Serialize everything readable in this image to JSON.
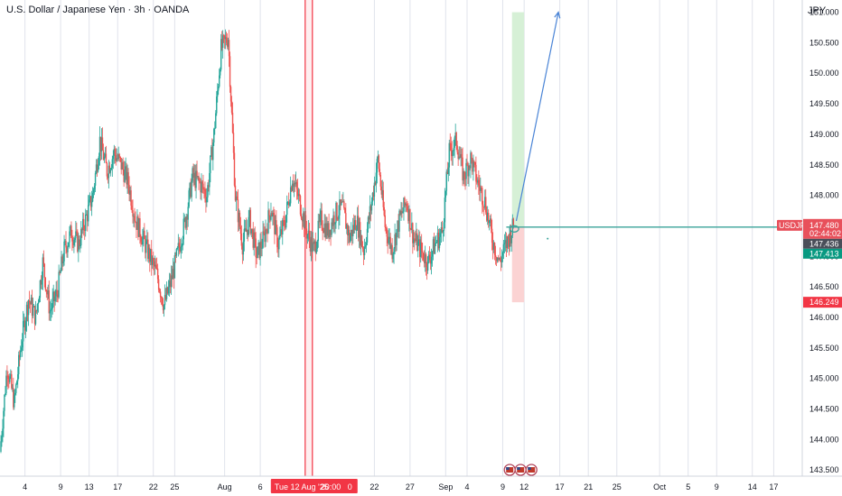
{
  "header": {
    "title": "U.S. Dollar / Japanese Yen · 3h · OANDA",
    "currency_button": "JPY"
  },
  "colors": {
    "up": "#26a69a",
    "down": "#ef5350",
    "grid": "#e0e3eb",
    "highlight": "#f23645",
    "projection": "#4a84d6",
    "target_zone": "#d6f0d6",
    "stop_zone": "#fbd3d3",
    "hline": "#3aa39a"
  },
  "chart_data": {
    "type": "candlestick",
    "symbol": "USDJPY",
    "timeframe": "3h",
    "source": "OANDA",
    "price_range": [
      143.4,
      151.2
    ],
    "y_ticks": [
      151.0,
      150.5,
      150.0,
      149.5,
      149.0,
      148.5,
      148.0,
      147.5,
      147.0,
      146.5,
      146.0,
      145.5,
      145.0,
      144.5,
      144.0,
      143.5
    ],
    "y_tick_labels": [
      "151.000",
      "150.500",
      "150.000",
      "149.500",
      "149.000",
      "148.500",
      "148.000",
      "147.500",
      "147.000",
      "146.500",
      "146.000",
      "145.500",
      "145.000",
      "144.500",
      "144.000",
      "143.500"
    ],
    "x_ticks": [
      {
        "label": "4",
        "day": 4
      },
      {
        "label": "9",
        "day": 9
      },
      {
        "label": "13",
        "day": 13
      },
      {
        "label": "17",
        "day": 17
      },
      {
        "label": "22",
        "day": 22
      },
      {
        "label": "25",
        "day": 25
      },
      {
        "label": "Aug",
        "day": 32
      },
      {
        "label": "6",
        "day": 37
      },
      {
        "label": "22",
        "day": 53
      },
      {
        "label": "27",
        "day": 58
      },
      {
        "label": "Sep",
        "day": 63
      },
      {
        "label": "4",
        "day": 66
      },
      {
        "label": "9",
        "day": 71
      },
      {
        "label": "12",
        "day": 74
      },
      {
        "label": "17",
        "day": 79
      },
      {
        "label": "21",
        "day": 83
      },
      {
        "label": "25",
        "day": 87
      },
      {
        "label": "Oct",
        "day": 93
      },
      {
        "label": "5",
        "day": 97
      },
      {
        "label": "9",
        "day": 101
      },
      {
        "label": "14",
        "day": 106
      },
      {
        "label": "17",
        "day": 109
      }
    ],
    "day_range": [
      0.5,
      113
    ],
    "highlight_day": 43.8,
    "highlight_label": "Tue 12 Aug '25",
    "highlight_time": "20:00",
    "highlight_extra": "0",
    "events_day": 73.5,
    "path": [
      [
        0.5,
        143.8
      ],
      [
        1.5,
        145.2
      ],
      [
        2.5,
        144.6
      ],
      [
        3.5,
        145.6
      ],
      [
        4.5,
        146.3
      ],
      [
        5.5,
        146.0
      ],
      [
        6.5,
        146.9
      ],
      [
        7.5,
        146.1
      ],
      [
        8.5,
        146.4
      ],
      [
        9.5,
        147.1
      ],
      [
        10.5,
        147.4
      ],
      [
        11.5,
        147.2
      ],
      [
        12.5,
        147.6
      ],
      [
        13.5,
        148.0
      ],
      [
        14.5,
        148.9
      ],
      [
        15.5,
        148.4
      ],
      [
        16.5,
        148.7
      ],
      [
        17.5,
        148.5
      ],
      [
        18.5,
        148.2
      ],
      [
        19.5,
        147.6
      ],
      [
        20.5,
        147.3
      ],
      [
        21.5,
        147.0
      ],
      [
        22.5,
        146.7
      ],
      [
        23.5,
        146.2
      ],
      [
        24.5,
        146.6
      ],
      [
        25.5,
        147.1
      ],
      [
        26.5,
        147.6
      ],
      [
        27.5,
        148.3
      ],
      [
        28.5,
        148.2
      ],
      [
        29.5,
        148.0
      ],
      [
        30.5,
        149.0
      ],
      [
        31.5,
        150.4
      ],
      [
        32.5,
        150.6
      ],
      [
        33.5,
        148.0
      ],
      [
        34.5,
        147.2
      ],
      [
        35.5,
        147.6
      ],
      [
        36.5,
        147.0
      ],
      [
        37.5,
        147.3
      ],
      [
        38.5,
        147.8
      ],
      [
        39.5,
        147.2
      ],
      [
        40.5,
        147.6
      ],
      [
        41.5,
        148.3
      ],
      [
        42.5,
        147.9
      ],
      [
        43.5,
        147.4
      ],
      [
        44.5,
        147.1
      ],
      [
        45.5,
        147.6
      ],
      [
        46.5,
        147.4
      ],
      [
        47.5,
        147.7
      ],
      [
        48.5,
        147.8
      ],
      [
        49.5,
        147.3
      ],
      [
        50.5,
        147.6
      ],
      [
        51.5,
        147.1
      ],
      [
        52.5,
        147.8
      ],
      [
        53.5,
        148.6
      ],
      [
        54.5,
        147.5
      ],
      [
        55.5,
        147.1
      ],
      [
        56.5,
        147.6
      ],
      [
        57.5,
        147.9
      ],
      [
        58.5,
        147.3
      ],
      [
        59.5,
        147.1
      ],
      [
        60.5,
        146.9
      ],
      [
        61.5,
        147.2
      ],
      [
        62.5,
        147.4
      ],
      [
        63.5,
        148.7
      ],
      [
        64.5,
        148.9
      ],
      [
        65.5,
        148.3
      ],
      [
        66.5,
        148.6
      ],
      [
        67.5,
        148.2
      ],
      [
        68.5,
        147.9
      ],
      [
        69.5,
        147.3
      ],
      [
        70.5,
        146.9
      ],
      [
        71.5,
        147.2
      ],
      [
        72.5,
        147.5
      ]
    ],
    "last_price": 147.48,
    "last_price_label": "147.480",
    "countdown": "02:44:02",
    "bid_label": "147.436",
    "ask_label": "147.413",
    "stop_label": "146.249",
    "symbol_tag": "USDJPY",
    "position_tool": {
      "day_start": 72.3,
      "day_end": 74.0,
      "entry": 147.48,
      "target": 151.0,
      "stop": 146.249
    },
    "projection_arrow": {
      "from": [
        72.9,
        147.58
      ],
      "to": [
        78.8,
        151.0
      ]
    },
    "entry_line": {
      "day_start": 71.5,
      "day_end": 110.5,
      "price": 147.48
    }
  }
}
